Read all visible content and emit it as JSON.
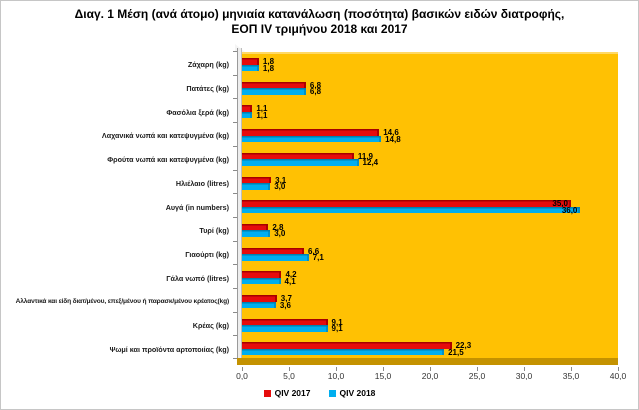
{
  "title": {
    "line1": "Διαγ. 1  Μέση (ανά άτομο) μηνιαία κατανάλωση (ποσότητα) βασικών ειδών διατροφής,",
    "line2": "ΕΟΠ IV τριμήνου 2018 και 2017"
  },
  "colors": {
    "plot_background": "#FFC103",
    "plot_floor": "#C49200",
    "series_2017": "#E60C0C",
    "series_2018": "#00AEEF"
  },
  "chart_data": {
    "type": "bar",
    "orientation": "horizontal",
    "title": "Διαγ. 1 Μέση (ανά άτομο) μηνιαία κατανάλωση (ποσότητα) βασικών ειδών διατροφής, ΕΟΠ IV τριμήνου 2018 και 2017",
    "categories": [
      "Ζάχαρη (kg)",
      "Πατάτες (kg)",
      "Φασόλια ξερά (kg)",
      "Λαχανικά νωπά και κατεψυγμένα (kg)",
      "Φρούτα νωπά και κατεψυγμένα (kg)",
      "Ηλιέλαιο (litres)",
      "Αυγά (in numbers)",
      "Τυρί (kg)",
      "Γιαούρτι (kg)",
      "Γάλα νωπό (litres)",
      "Αλλαντικά και είδη διατ/μένου, επεξ/μένου ή παρασκ/μένου κρέατος(kg)",
      "Κρέας (kg)",
      "Ψωμί και προϊόντα αρτοποιίας (kg)"
    ],
    "series": [
      {
        "name": "QIV 2017",
        "color": "#E60C0C",
        "values": [
          1.8,
          6.8,
          1.1,
          14.6,
          11.9,
          3.1,
          35.0,
          2.8,
          6.6,
          4.2,
          3.7,
          9.1,
          22.3
        ],
        "labels": [
          "1,8",
          "6,8",
          "1,1",
          "14,6",
          "11,9",
          "3,1",
          "35,0",
          "2,8",
          "6,6",
          "4,2",
          "3,7",
          "9,1",
          "22,3"
        ]
      },
      {
        "name": "QIV 2018",
        "color": "#00AEEF",
        "values": [
          1.8,
          6.8,
          1.1,
          14.8,
          12.4,
          3.0,
          36.0,
          3.0,
          7.1,
          4.1,
          3.6,
          9.1,
          21.5
        ],
        "labels": [
          "1,8",
          "6,8",
          "1,1",
          "14,8",
          "12,4",
          "3,0",
          "36,0",
          "3,0",
          "7,1",
          "4,1",
          "3,6",
          "9,1",
          "21,5"
        ]
      }
    ],
    "xlim": [
      0,
      40
    ],
    "x_ticks": [
      "0,0",
      "5,0",
      "10,0",
      "15,0",
      "20,0",
      "25,0",
      "30,0",
      "35,0",
      "40,0"
    ],
    "grid": false,
    "legend_position": "bottom"
  }
}
